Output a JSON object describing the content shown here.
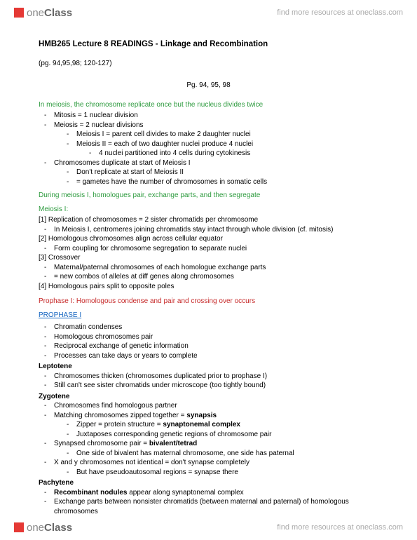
{
  "site": {
    "brand_prefix": "one",
    "brand_suffix": "Class",
    "tagline": "find more resources at oneclass.com"
  },
  "doc": {
    "title": "HMB265 Lecture 8 READINGS - Linkage and Recombination",
    "page_ref": "(pg. 94,95,98; 120-127)",
    "page_center": "Pg. 94, 95, 98"
  },
  "sections": [
    {
      "heading": "In meiosis, the chromosome replicate once but the nucleus divides twice",
      "heading_style": "green",
      "items": [
        {
          "t": "Mitosis = 1 nuclear division"
        },
        {
          "t": "Meiosis = 2 nuclear divisions",
          "sub": [
            {
              "t": "Meiosis I = parent cell divides to make 2 daughter nuclei"
            },
            {
              "t": "Meiosis II = each of two daughter nuclei produce 4 nuclei",
              "sub": [
                {
                  "t": "4 nuclei partitioned into 4 cells during cytokinesis"
                }
              ]
            }
          ]
        },
        {
          "t": "Chromosomes duplicate at start of Meiosis I",
          "sub": [
            {
              "t": "Don't replicate at start of Meiosis II"
            },
            {
              "t": "= gametes have the number of chromosomes in somatic cells"
            }
          ]
        }
      ]
    },
    {
      "heading": "During meiosis I, homologues pair, exchange parts, and then segregate",
      "heading_style": "green",
      "subhead": "Meiosis I:",
      "numbered": [
        {
          "n": "[1] Replication of chromosomes = 2 sister chromatids per chromosome",
          "items": [
            {
              "t": "In Meiosis I, centromeres joining chromatids stay intact through whole division (cf. mitosis)"
            }
          ]
        },
        {
          "n": "[2] Homologous chromosomes align across cellular equator",
          "items": [
            {
              "t": "Form coupling for chromosome segregation to separate nuclei"
            }
          ]
        },
        {
          "n": "[3] Crossover",
          "items": [
            {
              "t": "Maternal/paternal chromosomes of each homologue exchange parts"
            },
            {
              "t": "= new combos of alleles at diff genes along chromosomes"
            }
          ]
        },
        {
          "n": "[4] Homologous pairs split to opposite poles"
        }
      ]
    },
    {
      "heading": "Prophase I: Homologous condense and pair and crossing over occurs",
      "heading_style": "red"
    },
    {
      "heading": "PROPHASE I",
      "heading_style": "blue",
      "items": [
        {
          "t": "Chromatin condenses"
        },
        {
          "t": "Homologous chromosomes pair"
        },
        {
          "t": "Reciprocal exchange of genetic information"
        },
        {
          "t": "Processes can take days or years to complete"
        }
      ],
      "stages": [
        {
          "name": "Leptotene",
          "items": [
            {
              "t": "Chromosomes thicken (chromosomes duplicated prior to prophase I)"
            },
            {
              "t": "Still can't see sister chromatids under microscope (too tightly bound)"
            }
          ]
        },
        {
          "name": "Zygotene",
          "items": [
            {
              "t": "Chromosomes find homologous partner"
            },
            {
              "t_html": "Matching chromosomes zipped together = <b>synapsis</b>",
              "sub": [
                {
                  "t_html": "Zipper = protein structure = <b>synaptonemal complex</b>"
                },
                {
                  "t": "Juxtaposes corresponding genetic regions of chromosome pair"
                }
              ]
            },
            {
              "t_html": "Synapsed chromosome pair = <b>bivalent/tetrad</b>",
              "sub": [
                {
                  "t": "One side of bivalent has maternal chromosome, one side has paternal"
                }
              ]
            },
            {
              "t": "X and y chromosomes not identical = don't synapse completely",
              "sub": [
                {
                  "t": "But have pseudoautosomal regions = synapse there"
                }
              ]
            }
          ]
        },
        {
          "name": "Pachytene",
          "items": [
            {
              "t_html": "<b>Recombinant nodules</b> appear along synaptonemal complex"
            },
            {
              "t": "Exchange parts between nonsister chromatids (between maternal and paternal) of homologous chromosomes"
            }
          ]
        }
      ]
    }
  ]
}
